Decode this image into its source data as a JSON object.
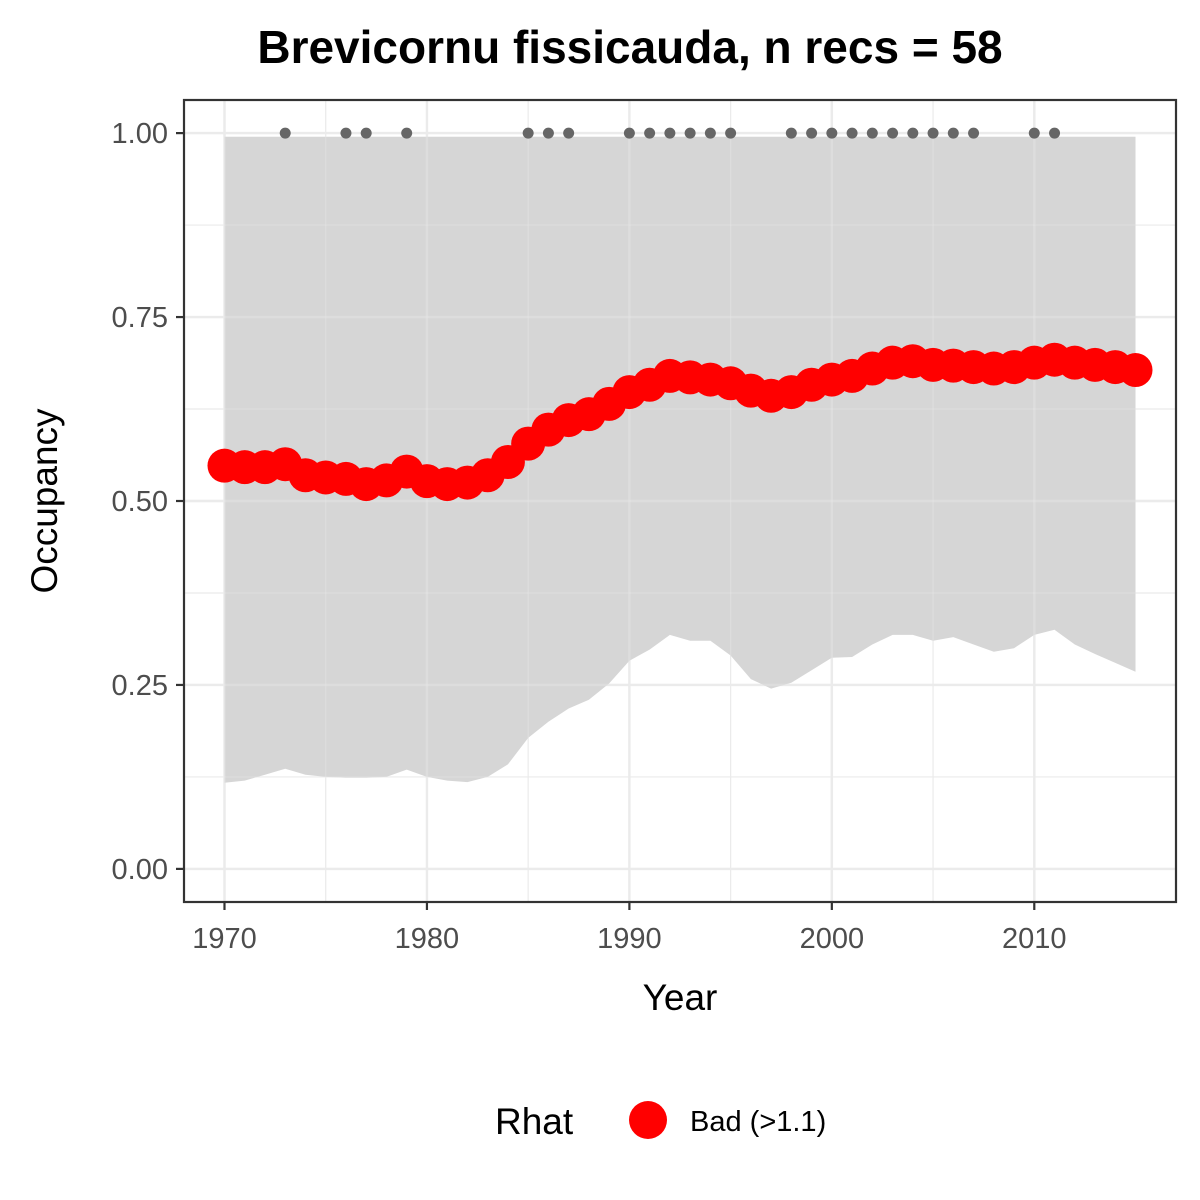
{
  "chart_data": {
    "type": "line",
    "title": "Brevicornu fissicauda, n recs = 58",
    "xlabel": "Year",
    "ylabel": "Occupancy",
    "xlim": [
      1968,
      2017
    ],
    "ylim": [
      -0.045,
      1.045
    ],
    "x_ticks": [
      1970,
      1980,
      1990,
      2000,
      2010
    ],
    "x_tick_labels": [
      "1970",
      "1980",
      "1990",
      "2000",
      "2010"
    ],
    "y_ticks": [
      0,
      0.25,
      0.5,
      0.75,
      1
    ],
    "y_tick_labels": [
      "0.00",
      "0.25",
      "0.50",
      "0.75",
      "1.00"
    ],
    "grid": true,
    "x": [
      1970,
      1971,
      1972,
      1973,
      1974,
      1975,
      1976,
      1977,
      1978,
      1979,
      1980,
      1981,
      1982,
      1983,
      1984,
      1985,
      1986,
      1987,
      1988,
      1989,
      1990,
      1991,
      1992,
      1993,
      1994,
      1995,
      1996,
      1997,
      1998,
      1999,
      2000,
      2001,
      2002,
      2003,
      2004,
      2005,
      2006,
      2007,
      2008,
      2009,
      2010,
      2011,
      2012,
      2013,
      2014,
      2015
    ],
    "series": [
      {
        "name": "Bad (>1.1)",
        "color": "#ff0000",
        "values": [
          0.548,
          0.546,
          0.546,
          0.55,
          0.535,
          0.532,
          0.53,
          0.523,
          0.528,
          0.54,
          0.527,
          0.523,
          0.525,
          0.535,
          0.553,
          0.578,
          0.597,
          0.61,
          0.618,
          0.632,
          0.648,
          0.658,
          0.67,
          0.668,
          0.665,
          0.66,
          0.65,
          0.643,
          0.648,
          0.658,
          0.665,
          0.67,
          0.68,
          0.688,
          0.69,
          0.685,
          0.684,
          0.682,
          0.68,
          0.682,
          0.688,
          0.692,
          0.688,
          0.685,
          0.682,
          0.678
        ]
      }
    ],
    "ribbon": {
      "color": "#d6d6d6",
      "lower": [
        0.117,
        0.12,
        0.128,
        0.136,
        0.128,
        0.125,
        0.124,
        0.124,
        0.125,
        0.135,
        0.125,
        0.12,
        0.118,
        0.125,
        0.142,
        0.178,
        0.2,
        0.218,
        0.23,
        0.252,
        0.283,
        0.298,
        0.318,
        0.31,
        0.31,
        0.29,
        0.258,
        0.245,
        0.253,
        0.27,
        0.287,
        0.288,
        0.305,
        0.318,
        0.318,
        0.31,
        0.315,
        0.305,
        0.295,
        0.3,
        0.318,
        0.325,
        0.305,
        0.292,
        0.28,
        0.268
      ],
      "upper": [
        0.995,
        0.995,
        0.995,
        0.995,
        0.995,
        0.995,
        0.995,
        0.995,
        0.995,
        0.995,
        0.995,
        0.995,
        0.995,
        0.995,
        0.995,
        0.995,
        0.995,
        0.995,
        0.995,
        0.995,
        0.995,
        0.995,
        0.995,
        0.995,
        0.995,
        0.995,
        0.995,
        0.995,
        0.995,
        0.995,
        0.995,
        0.995,
        0.995,
        0.995,
        0.995,
        0.995,
        0.995,
        0.995,
        0.995,
        0.995,
        0.995,
        0.995,
        0.995,
        0.995,
        0.995,
        0.995
      ]
    },
    "record_years": [
      1973,
      1976,
      1977,
      1979,
      1985,
      1986,
      1987,
      1990,
      1991,
      1992,
      1993,
      1994,
      1995,
      1998,
      1999,
      2000,
      2001,
      2002,
      2003,
      2004,
      2005,
      2006,
      2007,
      2010,
      2011
    ],
    "record_y": 1.0,
    "record_color": "#666666",
    "legend": {
      "title": "Rhat",
      "labels": [
        "Bad (>1.1)"
      ],
      "position": "bottom"
    }
  }
}
